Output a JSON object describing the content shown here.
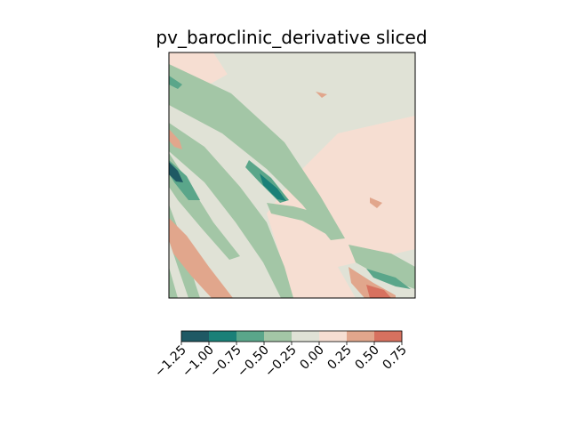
{
  "chart_data": {
    "type": "heatmap",
    "title": "pv_baroclinic_derivative sliced",
    "xlabel": "",
    "ylabel": "",
    "axes_ticks": "none",
    "colorbar": {
      "orientation": "horizontal",
      "levels": [
        -1.25,
        -1.0,
        -0.75,
        -0.5,
        -0.25,
        0.0,
        0.25,
        0.5,
        0.75
      ],
      "tick_labels": [
        "−1.25",
        "−1.00",
        "−0.75",
        "−0.50",
        "−0.25",
        "0.00",
        "0.25",
        "0.50",
        "0.75"
      ],
      "colors": [
        "#1f5964",
        "#1a8078",
        "#5aa68a",
        "#a3c6a6",
        "#e0e2d6",
        "#f6ded2",
        "#e1a68c",
        "#d7715f"
      ]
    },
    "features": [
      {
        "name": "diagonal negative band upper-left",
        "level_range": [
          -0.5,
          -0.25
        ],
        "color": "#a3c6a6"
      },
      {
        "name": "diagonal negative band middle",
        "level_range": [
          -0.75,
          -0.5
        ],
        "color": "#5aa68a"
      },
      {
        "name": "strong negative core left edge",
        "level_range": [
          -1.25,
          -1.0
        ],
        "color": "#1f5964"
      },
      {
        "name": "positive patch lower-left",
        "level_range": [
          0.25,
          0.5
        ],
        "color": "#e1a68c"
      },
      {
        "name": "positive patch lower-right",
        "level_range": [
          0.5,
          0.75
        ],
        "color": "#d7715f"
      },
      {
        "name": "background near zero",
        "level_range": [
          -0.25,
          0.25
        ],
        "color": "#f6ded2"
      }
    ]
  }
}
